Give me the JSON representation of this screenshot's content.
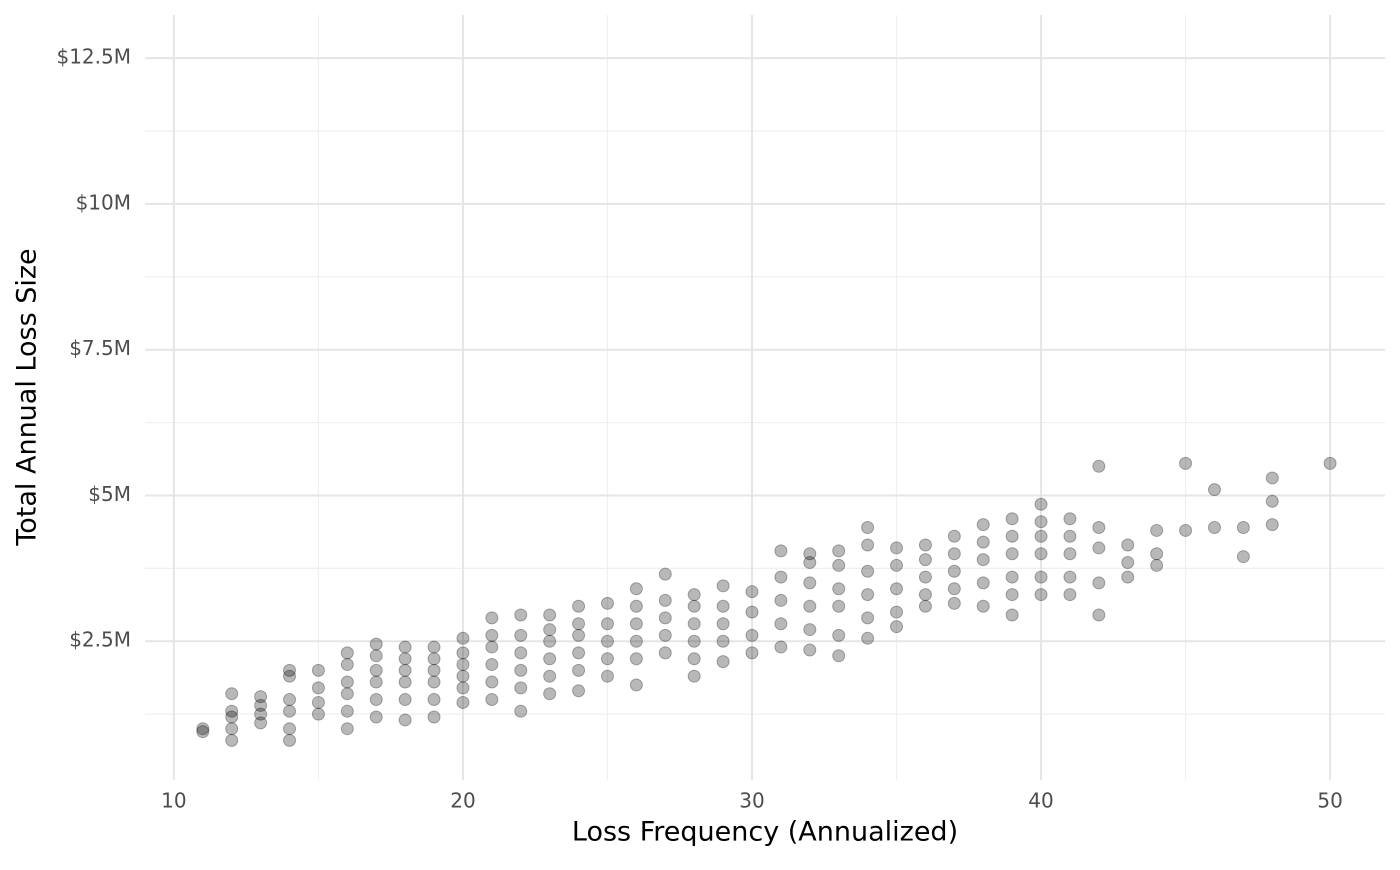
{
  "chart_data": {
    "type": "scatter",
    "x_label": "Loss Frequency (Annualized)",
    "y_label": "Total Annual Loss Size",
    "xlim": [
      9,
      51.9
    ],
    "xticks": [
      10,
      20,
      30,
      40,
      50
    ],
    "minor_xticks": [
      15,
      25,
      35,
      45
    ],
    "ylim": [
      120000,
      13240000
    ],
    "yticks": [
      {
        "value": 2500000,
        "label": "$2.5M"
      },
      {
        "value": 5000000,
        "label": "$5M"
      },
      {
        "value": 7500000,
        "label": "$7.5M"
      },
      {
        "value": 10000000,
        "label": "$10M"
      },
      {
        "value": 12500000,
        "label": "$12.5M"
      }
    ],
    "minor_yticks": [
      1250000,
      3750000,
      6250000,
      8750000,
      11250000
    ],
    "grid": true,
    "color": "#000000",
    "x": [
      11,
      11,
      12,
      12,
      12,
      12,
      12,
      13,
      13,
      13,
      13,
      14,
      14,
      14,
      14,
      14,
      14,
      15,
      15,
      15,
      15,
      16,
      16,
      16,
      16,
      16,
      16,
      17,
      17,
      17,
      17,
      17,
      17,
      18,
      18,
      18,
      18,
      18,
      18,
      19,
      19,
      19,
      19,
      19,
      19,
      20,
      20,
      20,
      20,
      20,
      20,
      21,
      21,
      21,
      21,
      21,
      21,
      22,
      22,
      22,
      22,
      22,
      22,
      23,
      23,
      23,
      23,
      23,
      23,
      24,
      24,
      24,
      24,
      24,
      24,
      25,
      25,
      25,
      25,
      25,
      26,
      26,
      26,
      26,
      26,
      26,
      27,
      27,
      27,
      27,
      27,
      28,
      28,
      28,
      28,
      28,
      28,
      29,
      29,
      29,
      29,
      29,
      30,
      30,
      30,
      30,
      31,
      31,
      31,
      31,
      31,
      32,
      32,
      32,
      32,
      32,
      32,
      33,
      33,
      33,
      33,
      33,
      33,
      34,
      34,
      34,
      34,
      34,
      34,
      35,
      35,
      35,
      35,
      35,
      36,
      36,
      36,
      36,
      36,
      37,
      37,
      37,
      37,
      37,
      38,
      38,
      38,
      38,
      38,
      39,
      39,
      39,
      39,
      39,
      39,
      40,
      40,
      40,
      40,
      40,
      40,
      41,
      41,
      41,
      41,
      41,
      42,
      42,
      42,
      42,
      42,
      43,
      43,
      43,
      44,
      44,
      44,
      45,
      45,
      46,
      46,
      47,
      47,
      48,
      48,
      48,
      50
    ],
    "values": [
      950000,
      1000000,
      800000,
      1000000,
      1200000,
      1300000,
      1600000,
      1100000,
      1250000,
      1400000,
      1550000,
      800000,
      1000000,
      1300000,
      1500000,
      1900000,
      2000000,
      1250000,
      1450000,
      1700000,
      2000000,
      1000000,
      1300000,
      1600000,
      1800000,
      2100000,
      2300000,
      1200000,
      1500000,
      1800000,
      2000000,
      2250000,
      2450000,
      1150000,
      1500000,
      1800000,
      2000000,
      2200000,
      2400000,
      1200000,
      1500000,
      1800000,
      2000000,
      2200000,
      2400000,
      1450000,
      1700000,
      1900000,
      2100000,
      2300000,
      2550000,
      1500000,
      1800000,
      2100000,
      2400000,
      2600000,
      2900000,
      1300000,
      1700000,
      2000000,
      2300000,
      2600000,
      2950000,
      1600000,
      1900000,
      2200000,
      2500000,
      2700000,
      2950000,
      1650000,
      2000000,
      2300000,
      2600000,
      2800000,
      3100000,
      1900000,
      2200000,
      2500000,
      2800000,
      3150000,
      1750000,
      2200000,
      2500000,
      2800000,
      3100000,
      3400000,
      2300000,
      2600000,
      2900000,
      3200000,
      3650000,
      1900000,
      2200000,
      2500000,
      2800000,
      3100000,
      3300000,
      2150000,
      2500000,
      2800000,
      3100000,
      3450000,
      2300000,
      2600000,
      3000000,
      3350000,
      2400000,
      2800000,
      3200000,
      3600000,
      4050000,
      2350000,
      2700000,
      3100000,
      3500000,
      3850000,
      4000000,
      2250000,
      2600000,
      3100000,
      3400000,
      3800000,
      4050000,
      2550000,
      2900000,
      3300000,
      3700000,
      4150000,
      4450000,
      2750000,
      3000000,
      3400000,
      3800000,
      4100000,
      3100000,
      3300000,
      3600000,
      3900000,
      4150000,
      3150000,
      3400000,
      3700000,
      4000000,
      4300000,
      3100000,
      3500000,
      3900000,
      4200000,
      4500000,
      2950000,
      3300000,
      3600000,
      4000000,
      4300000,
      4600000,
      3300000,
      3600000,
      4000000,
      4300000,
      4550000,
      4850000,
      3300000,
      3600000,
      4000000,
      4300000,
      4600000,
      2950000,
      3500000,
      4100000,
      4450000,
      5500000,
      3600000,
      3850000,
      4150000,
      3800000,
      4000000,
      4400000,
      4400000,
      5550000,
      4450000,
      5100000,
      3950000,
      4450000,
      4500000,
      4900000,
      5300000,
      5550000
    ]
  }
}
